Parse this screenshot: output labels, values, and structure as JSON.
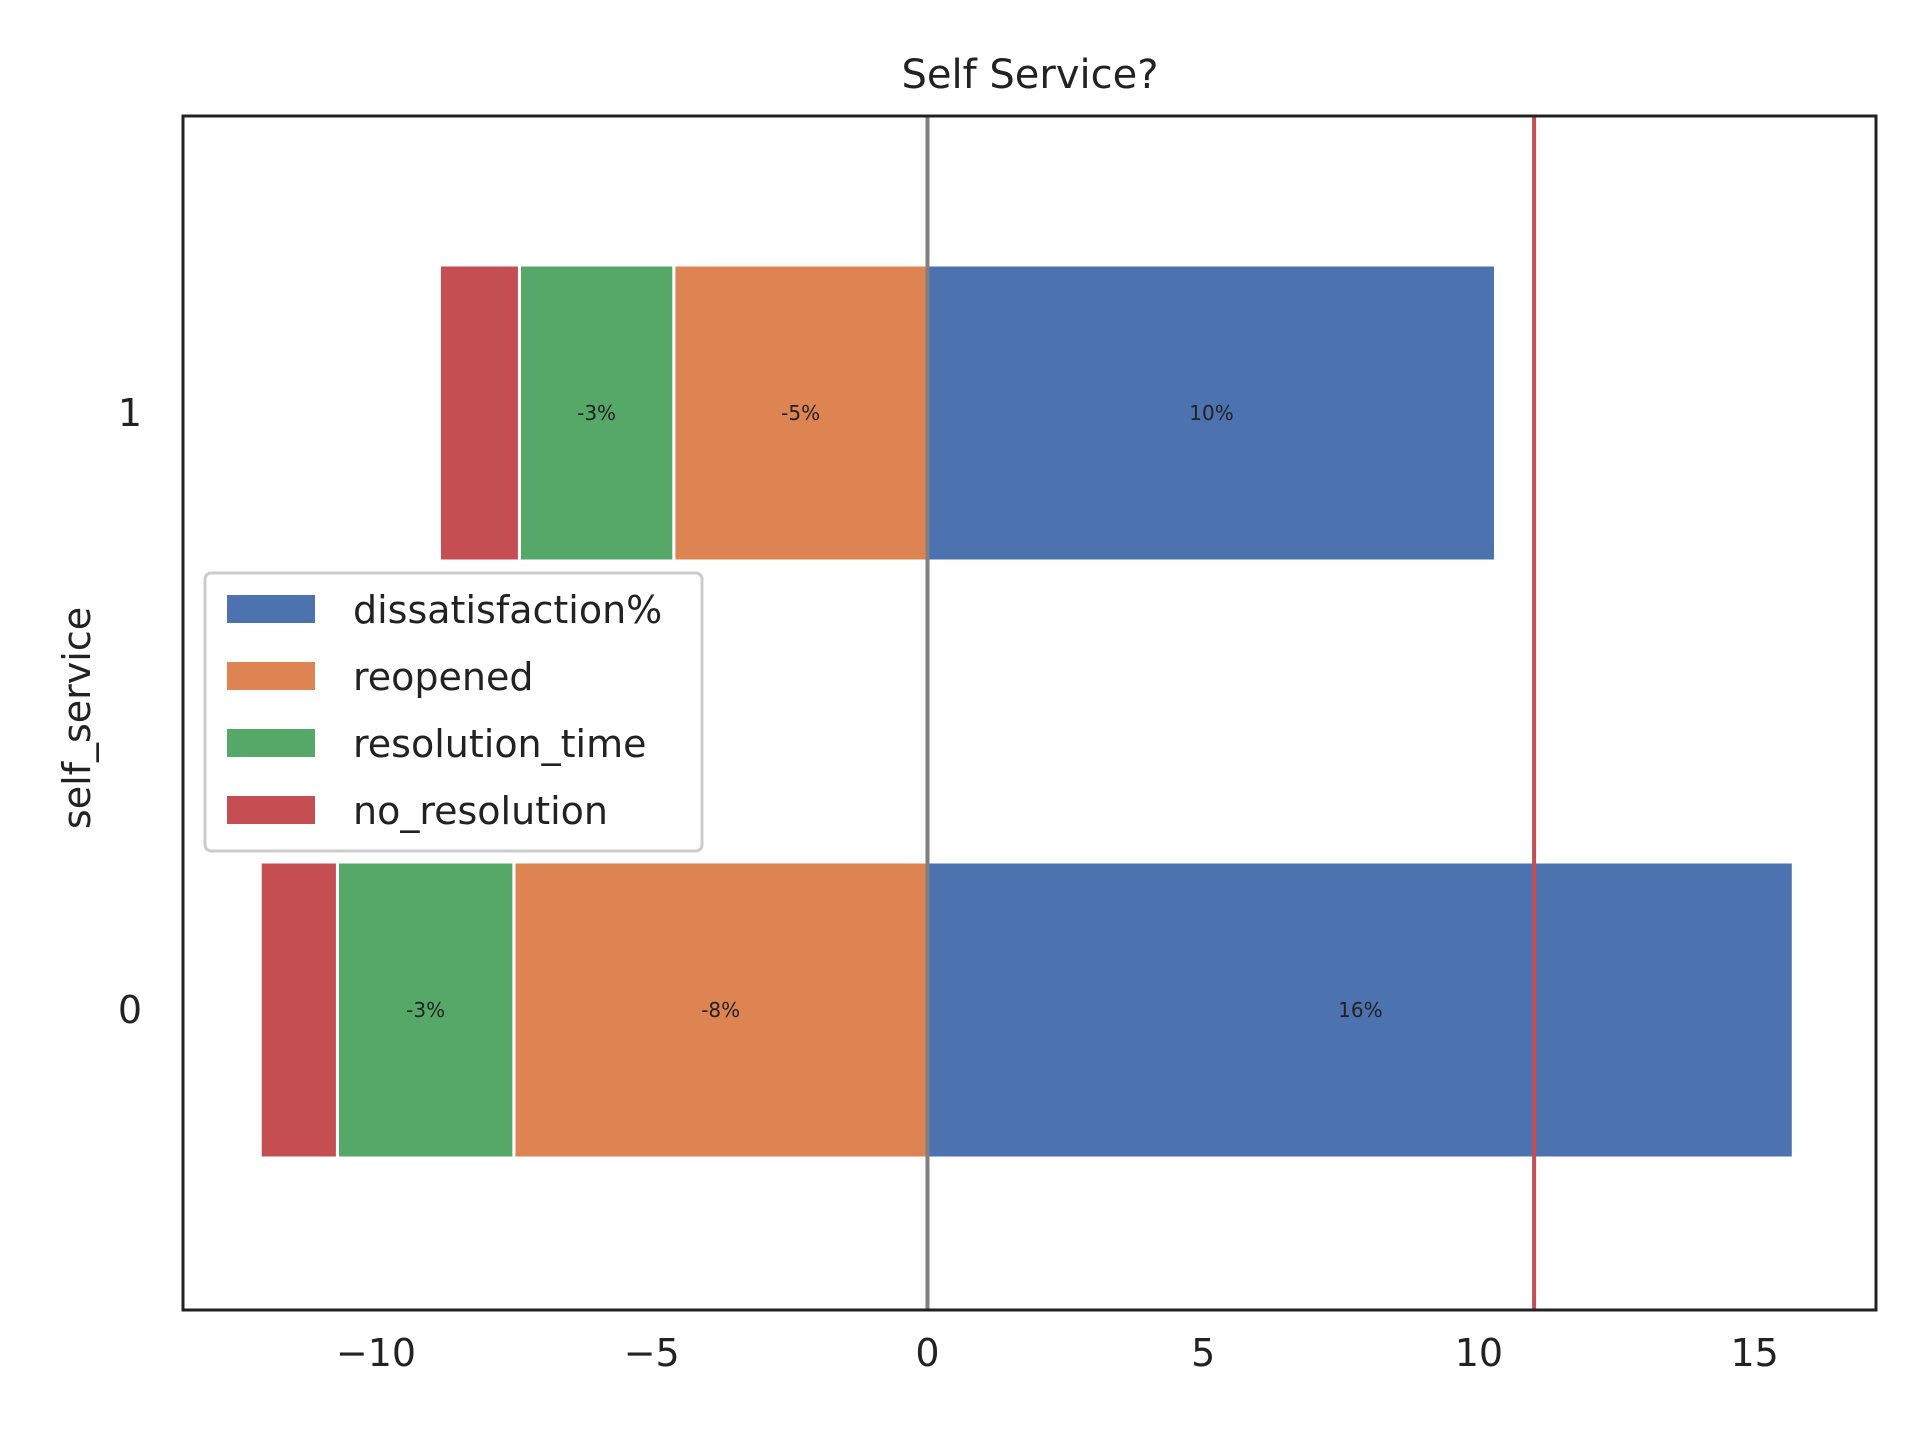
{
  "chart_data": {
    "type": "bar",
    "orientation": "horizontal",
    "stacked": true,
    "title": "Self Service?",
    "xlabel": "",
    "ylabel": "self_service",
    "categories": [
      "1",
      "0"
    ],
    "xlim": [
      -13.5,
      17.2
    ],
    "xticks": [
      -10,
      -5,
      0,
      5,
      10,
      15
    ],
    "xtick_labels": [
      "−10",
      "−5",
      "0",
      "5",
      "10",
      "15"
    ],
    "grid": false,
    "legend_position": "center-left",
    "series": [
      {
        "name": "dissatisfaction%",
        "color": "#4c72b0",
        "values": [
          10.3,
          15.7
        ],
        "labels": [
          "10%",
          "16%"
        ]
      },
      {
        "name": "reopened",
        "color": "#dd8452",
        "values": [
          -4.6,
          -7.5
        ],
        "labels": [
          "-5%",
          "-8%"
        ]
      },
      {
        "name": "resolution_time",
        "color": "#55a868",
        "values": [
          -2.8,
          -3.2
        ],
        "labels": [
          "-3%",
          "-3%"
        ]
      },
      {
        "name": "no_resolution",
        "color": "#c44e52",
        "values": [
          -1.45,
          -1.4
        ],
        "labels": [
          "",
          ""
        ]
      }
    ],
    "reference_lines": [
      {
        "x": 0,
        "color": "#808080"
      },
      {
        "x": 11,
        "color": "#c44e52"
      }
    ]
  }
}
